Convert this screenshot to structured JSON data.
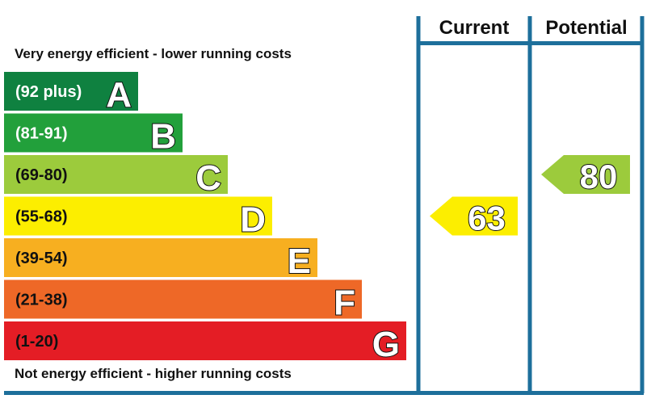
{
  "chart_data": {
    "type": "bar",
    "top_caption": "Very energy efficient - lower running costs",
    "bottom_caption": "Not energy efficient - higher running costs",
    "bands": [
      {
        "range": "(92 plus)",
        "letter": "A",
        "color": "#0f8140"
      },
      {
        "range": "(81-91)",
        "letter": "B",
        "color": "#22a03b"
      },
      {
        "range": "(69-80)",
        "letter": "C",
        "color": "#9ccb3c"
      },
      {
        "range": "(55-68)",
        "letter": "D",
        "color": "#fcee00"
      },
      {
        "range": "(39-54)",
        "letter": "E",
        "color": "#f7af20"
      },
      {
        "range": "(21-38)",
        "letter": "F",
        "color": "#ee6827"
      },
      {
        "range": "(1-20)",
        "letter": "G",
        "color": "#e41d25"
      }
    ],
    "columns": [
      {
        "header": "Current",
        "value": 63,
        "band": "D",
        "color": "#fcee00"
      },
      {
        "header": "Potential",
        "value": 80,
        "band": "C",
        "color": "#9ccb3c"
      }
    ],
    "frame_color": "#1d6f9b"
  }
}
